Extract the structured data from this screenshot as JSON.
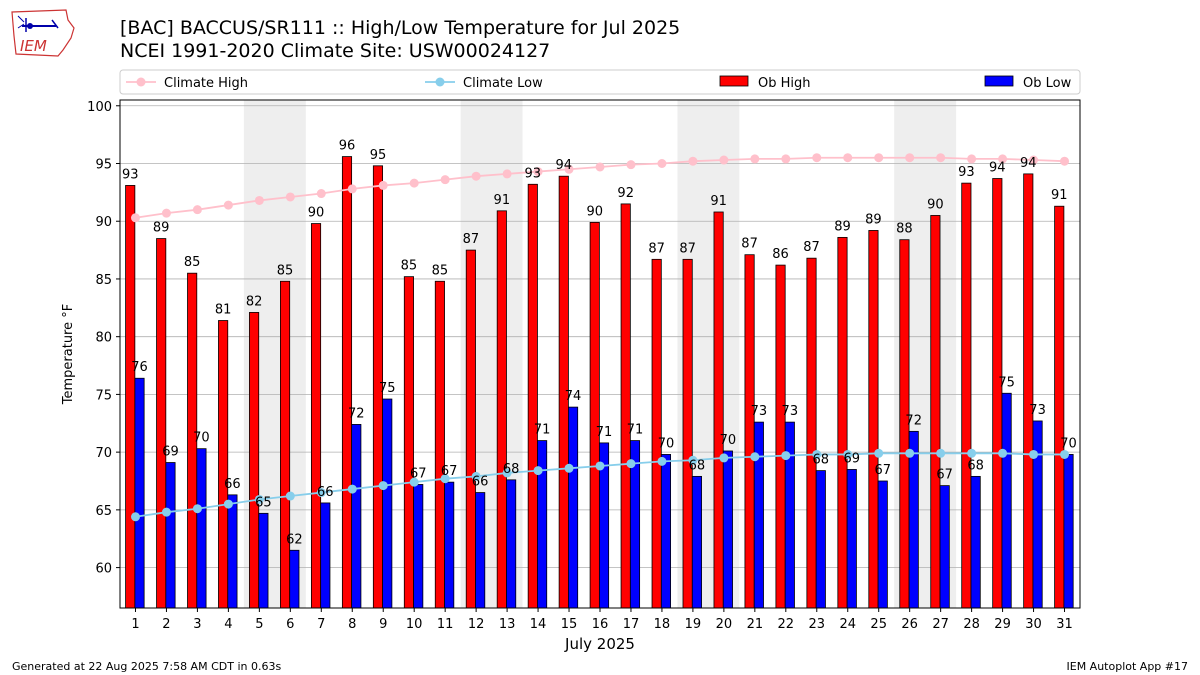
{
  "header": {
    "title_line1": "[BAC] BACCUS/SR111  :: High/Low Temperature for Jul 2025",
    "title_line2": "NCEI 1991-2020 Climate Site: USW00024127",
    "logo_text": "IEM"
  },
  "footer": {
    "generated": "Generated at 22 Aug 2025 7:58 AM CDT in 0.63s",
    "app": "IEM Autoplot App #17"
  },
  "colors": {
    "ob_high": "#ff0000",
    "ob_low": "#0000ff",
    "climate_high": "#ffc0cb",
    "climate_low": "#87ceeb",
    "weekend_band": "#eeeeee"
  },
  "chart_data": {
    "type": "bar",
    "xlabel": "July 2025",
    "ylabel": "Temperature °F",
    "ylim": [
      56.5,
      100.5
    ],
    "yticks": [
      60,
      65,
      70,
      75,
      80,
      85,
      90,
      95,
      100
    ],
    "grid": true,
    "legend_position": "top",
    "categories": [
      "1",
      "2",
      "3",
      "4",
      "5",
      "6",
      "7",
      "8",
      "9",
      "10",
      "11",
      "12",
      "13",
      "14",
      "15",
      "16",
      "17",
      "18",
      "19",
      "20",
      "21",
      "22",
      "23",
      "24",
      "25",
      "26",
      "27",
      "28",
      "29",
      "30",
      "31"
    ],
    "weekend_days": [
      [
        5,
        6
      ],
      [
        12,
        13
      ],
      [
        19,
        20
      ],
      [
        26,
        27
      ]
    ],
    "series": [
      {
        "name": "Climate High",
        "kind": "line",
        "values": [
          90.3,
          90.7,
          91.0,
          91.4,
          91.8,
          92.1,
          92.4,
          92.8,
          93.1,
          93.3,
          93.6,
          93.9,
          94.1,
          94.3,
          94.5,
          94.7,
          94.9,
          95.0,
          95.2,
          95.3,
          95.4,
          95.4,
          95.5,
          95.5,
          95.5,
          95.5,
          95.5,
          95.4,
          95.4,
          95.3,
          95.2
        ]
      },
      {
        "name": "Climate Low",
        "kind": "line",
        "values": [
          64.4,
          64.8,
          65.1,
          65.5,
          65.9,
          66.2,
          66.5,
          66.8,
          67.1,
          67.4,
          67.7,
          67.9,
          68.2,
          68.4,
          68.6,
          68.8,
          69.0,
          69.2,
          69.3,
          69.5,
          69.6,
          69.7,
          69.8,
          69.8,
          69.9,
          69.9,
          69.9,
          69.9,
          69.9,
          69.8,
          69.8
        ]
      },
      {
        "name": "Ob High",
        "kind": "bar",
        "values": [
          93,
          89,
          85,
          81,
          82,
          85,
          90,
          96,
          95,
          85,
          85,
          87,
          91,
          93,
          94,
          90,
          92,
          87,
          87,
          91,
          87,
          86,
          87,
          89,
          89,
          88,
          90,
          93,
          94,
          94,
          91
        ],
        "bar_values": [
          93.1,
          88.5,
          85.5,
          81.4,
          82.1,
          84.8,
          89.8,
          95.6,
          94.8,
          85.2,
          84.8,
          87.5,
          90.9,
          93.2,
          93.9,
          89.9,
          91.5,
          86.7,
          86.7,
          90.8,
          87.1,
          86.2,
          86.8,
          88.6,
          89.2,
          88.4,
          90.5,
          93.3,
          93.7,
          94.1,
          91.3
        ]
      },
      {
        "name": "Ob Low",
        "kind": "bar",
        "values": [
          76,
          69,
          70,
          66,
          65,
          62,
          66,
          72,
          75,
          67,
          67,
          66,
          68,
          71,
          74,
          71,
          71,
          70,
          68,
          70,
          73,
          73,
          68,
          69,
          67,
          72,
          67,
          68,
          75,
          73,
          70
        ],
        "bar_values": [
          76.4,
          69.1,
          70.3,
          66.3,
          64.7,
          61.5,
          65.6,
          72.4,
          74.6,
          67.2,
          67.4,
          66.5,
          67.6,
          71.0,
          73.9,
          70.8,
          71.0,
          69.8,
          67.9,
          70.1,
          72.6,
          72.6,
          68.4,
          68.5,
          67.5,
          71.8,
          67.1,
          67.9,
          75.1,
          72.7,
          69.8
        ]
      }
    ]
  }
}
